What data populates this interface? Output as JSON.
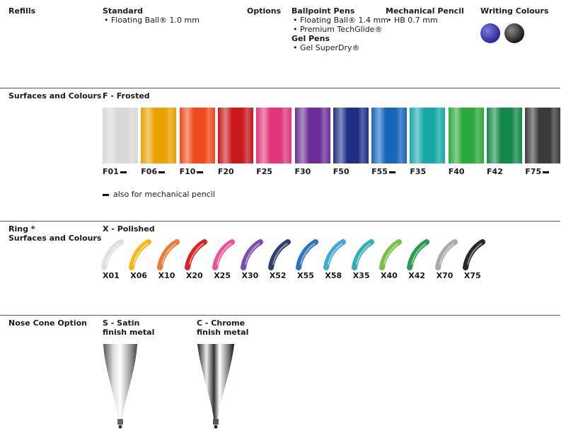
{
  "refills": {
    "label": "Refills",
    "standard_title": "Standard",
    "standard_items": [
      "• Floating Ball® 1.0 mm"
    ],
    "options_label": "Options",
    "ballpoint_title": "Ballpoint Pens",
    "ballpoint_items": [
      "• Floating Ball® 1.4 mm",
      "• Premium TechGlide®"
    ],
    "gel_title": "Gel Pens",
    "gel_items": [
      "• Gel SuperDry®"
    ],
    "pencil_title": "Mechanical Pencil",
    "pencil_items": [
      "• HB 0.7 mm"
    ],
    "writing_title": "Writing Colours",
    "writing_colors": [
      "#3a3aa8",
      "#2a2a2a"
    ]
  },
  "surfaces": {
    "label": "Surfaces and Colours",
    "title": "F - Frosted",
    "footnote": "also for mechanical pencil",
    "swatches": [
      {
        "code": "F01",
        "color": "#d8d8d8",
        "pencil": true
      },
      {
        "code": "F06",
        "color": "#e9a000",
        "pencil": true
      },
      {
        "code": "F10",
        "color": "#ee4a1c",
        "pencil": true
      },
      {
        "code": "F20",
        "color": "#c8181c",
        "pencil": false
      },
      {
        "code": "F25",
        "color": "#e0357a",
        "pencil": false
      },
      {
        "code": "F30",
        "color": "#6a2e94",
        "pencil": false
      },
      {
        "code": "F50",
        "color": "#1f2f86",
        "pencil": false
      },
      {
        "code": "F55",
        "color": "#1666bb",
        "pencil": true
      },
      {
        "code": "F35",
        "color": "#16a8a4",
        "pencil": false
      },
      {
        "code": "F40",
        "color": "#2aa83a",
        "pencil": false
      },
      {
        "code": "F42",
        "color": "#13884a",
        "pencil": false
      },
      {
        "code": "F75",
        "color": "#3a3a3a",
        "pencil": true
      }
    ]
  },
  "ring": {
    "label": "Ring *",
    "label2": "Surfaces and Colours",
    "title": "X - Polished",
    "items": [
      {
        "code": "X01",
        "color": "#dcdcdc"
      },
      {
        "code": "X06",
        "color": "#f4b000"
      },
      {
        "code": "X10",
        "color": "#ee6a1e"
      },
      {
        "code": "X20",
        "color": "#cc1010"
      },
      {
        "code": "X25",
        "color": "#e8408a"
      },
      {
        "code": "X30",
        "color": "#6a3aa0"
      },
      {
        "code": "X52",
        "color": "#1a2a5a"
      },
      {
        "code": "X55",
        "color": "#1466b8"
      },
      {
        "code": "X58",
        "color": "#2a9ed0"
      },
      {
        "code": "X35",
        "color": "#1aa8a4"
      },
      {
        "code": "X40",
        "color": "#6ab830"
      },
      {
        "code": "X42",
        "color": "#129040"
      },
      {
        "code": "X70",
        "color": "#a0a0a0"
      },
      {
        "code": "X75",
        "color": "#111111"
      }
    ]
  },
  "nose": {
    "label": "Nose Cone Option",
    "satin": "S - Satin finish metal",
    "chrome": "C - Chrome finish metal"
  }
}
